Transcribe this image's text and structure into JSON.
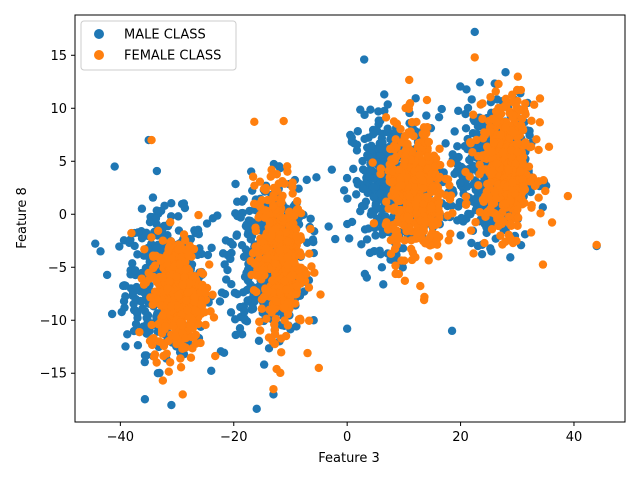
{
  "chart_data": {
    "type": "scatter",
    "title": "",
    "xlabel": "Feature 3",
    "ylabel": "Feature 8",
    "xlim": [
      -48,
      49
    ],
    "ylim": [
      -19.6,
      18.8
    ],
    "xticks": [
      -40,
      -20,
      0,
      20,
      40
    ],
    "yticks": [
      -15,
      -10,
      -5,
      0,
      5,
      10,
      15
    ],
    "grid": false,
    "legend_position": "top-left",
    "colors": {
      "male": "#1f77b4",
      "female": "#ff7f0e"
    },
    "series": [
      {
        "name": "MALE CLASS",
        "color": "#1f77b4",
        "clusters": [
          {
            "center": [
              -32,
              -6.5
            ],
            "spread": [
              4.2,
              3.8
            ]
          },
          {
            "center": [
              -14,
              -4
            ],
            "spread": [
              4.0,
              4.2
            ]
          },
          {
            "center": [
              8,
              3
            ],
            "spread": [
              4.2,
              3.6
            ]
          },
          {
            "center": [
              25,
              4
            ],
            "spread": [
              4.0,
              3.8
            ]
          }
        ],
        "outliers": [
          [
            -35,
            7
          ],
          [
            22.5,
            17.2
          ],
          [
            3,
            14.6
          ],
          [
            18.5,
            -11
          ],
          [
            -31,
            -18
          ],
          [
            -43.5,
            -3.5
          ],
          [
            -41,
            4.5
          ],
          [
            -13,
            -17
          ],
          [
            0,
            -10.8
          ],
          [
            44,
            -3
          ]
        ]
      },
      {
        "name": "FEMALE CLASS",
        "color": "#ff7f0e",
        "clusters": [
          {
            "center": [
              -30,
              -7.5
            ],
            "spread": [
              2.8,
              3.2
            ]
          },
          {
            "center": [
              -12,
              -4
            ],
            "spread": [
              2.6,
              4.2
            ]
          },
          {
            "center": [
              12,
              2
            ],
            "spread": [
              3.0,
              3.8
            ]
          },
          {
            "center": [
              28,
              4.5
            ],
            "spread": [
              3.0,
              3.6
            ]
          }
        ],
        "outliers": [
          [
            -34.5,
            7
          ],
          [
            44,
            -2.9
          ],
          [
            -13,
            -16.5
          ],
          [
            -29,
            -17
          ],
          [
            22.5,
            14.8
          ],
          [
            -5,
            -14.5
          ]
        ]
      }
    ],
    "points_per_cluster": 420
  }
}
